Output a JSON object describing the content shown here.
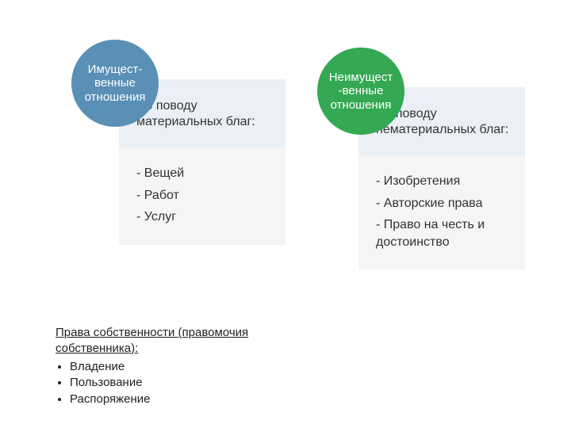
{
  "left": {
    "badge": {
      "line1": "Имущест-венные",
      "line2": "отношения",
      "bg": "#5a8fb6",
      "fontsize": 15
    },
    "box": {
      "top_bg": "#eaf0f6",
      "bottom_bg": "#f5f5f5",
      "heading": "По поводу материальных благ:",
      "items": [
        "- Вещей",
        "- Работ",
        "- Услуг"
      ]
    }
  },
  "right": {
    "badge": {
      "line1": "Неимущест",
      "line2": "-венные отношения",
      "bg": "#34a853",
      "fontsize": 15
    },
    "box": {
      "top_bg": "#eaf0f6",
      "bottom_bg": "#f5f5f5",
      "heading": "По поводу нематериальных благ:",
      "items": [
        "- Изобретения",
        "- Авторские права",
        "- Право на честь и достоинство"
      ]
    }
  },
  "footer": {
    "title": "Права собственности (правомочия собственника):",
    "items": [
      "Владение",
      "Пользование",
      "Распоряжение"
    ]
  },
  "text_color": "#333333"
}
